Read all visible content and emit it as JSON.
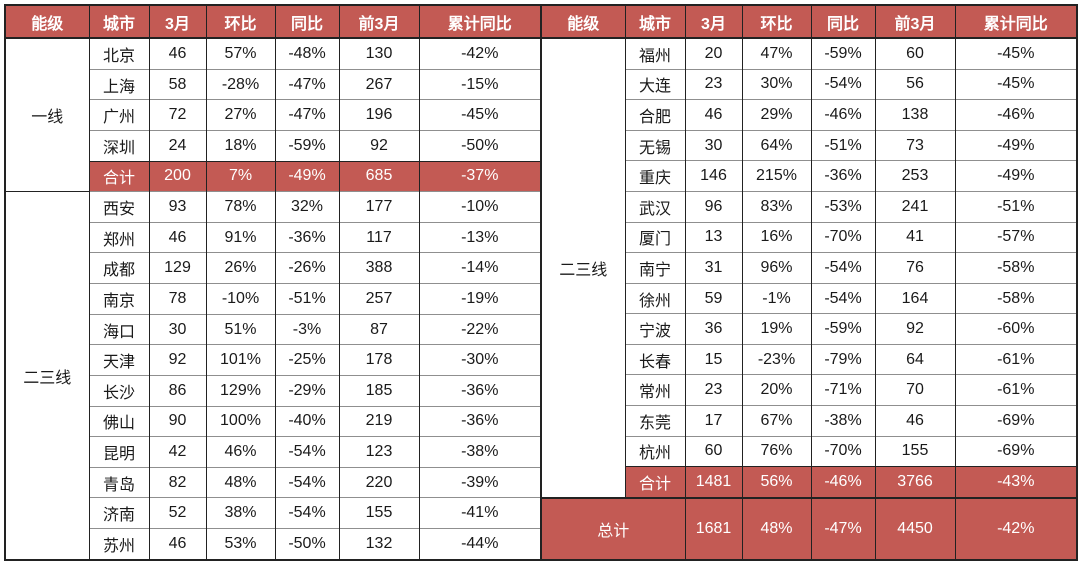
{
  "colors": {
    "accent_red": "#C35A54",
    "header_text": "#ffffff",
    "body_text": "#1a1a1a",
    "grid_dark": "#222222",
    "grid_light": "#8f8f8f"
  },
  "chart_data": {
    "type": "table",
    "columns": [
      "能级",
      "城市",
      "3月",
      "环比",
      "同比",
      "前3月",
      "累计同比"
    ],
    "tables": [
      {
        "name": "left",
        "groups": [
          {
            "tier": "一线",
            "rows": [
              {
                "cells": [
                  "北京",
                  "46",
                  "57%",
                  "-48%",
                  "130",
                  "-42%"
                ],
                "highlight": false
              },
              {
                "cells": [
                  "上海",
                  "58",
                  "-28%",
                  "-47%",
                  "267",
                  "-15%"
                ],
                "highlight": false
              },
              {
                "cells": [
                  "广州",
                  "72",
                  "27%",
                  "-47%",
                  "196",
                  "-45%"
                ],
                "highlight": false
              },
              {
                "cells": [
                  "深圳",
                  "24",
                  "18%",
                  "-59%",
                  "92",
                  "-50%"
                ],
                "highlight": false
              },
              {
                "cells": [
                  "合计",
                  "200",
                  "7%",
                  "-49%",
                  "685",
                  "-37%"
                ],
                "highlight": true
              }
            ]
          },
          {
            "tier": "二三线",
            "rows": [
              {
                "cells": [
                  "西安",
                  "93",
                  "78%",
                  "32%",
                  "177",
                  "-10%"
                ],
                "highlight": false
              },
              {
                "cells": [
                  "郑州",
                  "46",
                  "91%",
                  "-36%",
                  "117",
                  "-13%"
                ],
                "highlight": false
              },
              {
                "cells": [
                  "成都",
                  "129",
                  "26%",
                  "-26%",
                  "388",
                  "-14%"
                ],
                "highlight": false
              },
              {
                "cells": [
                  "南京",
                  "78",
                  "-10%",
                  "-51%",
                  "257",
                  "-19%"
                ],
                "highlight": false
              },
              {
                "cells": [
                  "海口",
                  "30",
                  "51%",
                  "-3%",
                  "87",
                  "-22%"
                ],
                "highlight": false
              },
              {
                "cells": [
                  "天津",
                  "92",
                  "101%",
                  "-25%",
                  "178",
                  "-30%"
                ],
                "highlight": false
              },
              {
                "cells": [
                  "长沙",
                  "86",
                  "129%",
                  "-29%",
                  "185",
                  "-36%"
                ],
                "highlight": false
              },
              {
                "cells": [
                  "佛山",
                  "90",
                  "100%",
                  "-40%",
                  "219",
                  "-36%"
                ],
                "highlight": false
              },
              {
                "cells": [
                  "昆明",
                  "42",
                  "46%",
                  "-54%",
                  "123",
                  "-38%"
                ],
                "highlight": false
              },
              {
                "cells": [
                  "青岛",
                  "82",
                  "48%",
                  "-54%",
                  "220",
                  "-39%"
                ],
                "highlight": false
              },
              {
                "cells": [
                  "济南",
                  "52",
                  "38%",
                  "-54%",
                  "155",
                  "-41%"
                ],
                "highlight": false
              },
              {
                "cells": [
                  "苏州",
                  "46",
                  "53%",
                  "-50%",
                  "132",
                  "-44%"
                ],
                "highlight": false
              }
            ]
          }
        ]
      },
      {
        "name": "right",
        "groups": [
          {
            "tier": "二三线",
            "rows": [
              {
                "cells": [
                  "福州",
                  "20",
                  "47%",
                  "-59%",
                  "60",
                  "-45%"
                ],
                "highlight": false
              },
              {
                "cells": [
                  "大连",
                  "23",
                  "30%",
                  "-54%",
                  "56",
                  "-45%"
                ],
                "highlight": false
              },
              {
                "cells": [
                  "合肥",
                  "46",
                  "29%",
                  "-46%",
                  "138",
                  "-46%"
                ],
                "highlight": false
              },
              {
                "cells": [
                  "无锡",
                  "30",
                  "64%",
                  "-51%",
                  "73",
                  "-49%"
                ],
                "highlight": false
              },
              {
                "cells": [
                  "重庆",
                  "146",
                  "215%",
                  "-36%",
                  "253",
                  "-49%"
                ],
                "highlight": false
              },
              {
                "cells": [
                  "武汉",
                  "96",
                  "83%",
                  "-53%",
                  "241",
                  "-51%"
                ],
                "highlight": false
              },
              {
                "cells": [
                  "厦门",
                  "13",
                  "16%",
                  "-70%",
                  "41",
                  "-57%"
                ],
                "highlight": false
              },
              {
                "cells": [
                  "南宁",
                  "31",
                  "96%",
                  "-54%",
                  "76",
                  "-58%"
                ],
                "highlight": false
              },
              {
                "cells": [
                  "徐州",
                  "59",
                  "-1%",
                  "-54%",
                  "164",
                  "-58%"
                ],
                "highlight": false
              },
              {
                "cells": [
                  "宁波",
                  "36",
                  "19%",
                  "-59%",
                  "92",
                  "-60%"
                ],
                "highlight": false
              },
              {
                "cells": [
                  "长春",
                  "15",
                  "-23%",
                  "-79%",
                  "64",
                  "-61%"
                ],
                "highlight": false
              },
              {
                "cells": [
                  "常州",
                  "23",
                  "20%",
                  "-71%",
                  "70",
                  "-61%"
                ],
                "highlight": false
              },
              {
                "cells": [
                  "东莞",
                  "17",
                  "67%",
                  "-38%",
                  "46",
                  "-69%"
                ],
                "highlight": false
              },
              {
                "cells": [
                  "杭州",
                  "60",
                  "76%",
                  "-70%",
                  "155",
                  "-69%"
                ],
                "highlight": false
              },
              {
                "cells": [
                  "合计",
                  "1481",
                  "56%",
                  "-46%",
                  "3766",
                  "-43%"
                ],
                "highlight": true
              }
            ]
          }
        ],
        "grand_total": {
          "label": "总计",
          "cells": [
            "1681",
            "48%",
            "-47%",
            "4450",
            "-42%"
          ]
        }
      }
    ]
  }
}
